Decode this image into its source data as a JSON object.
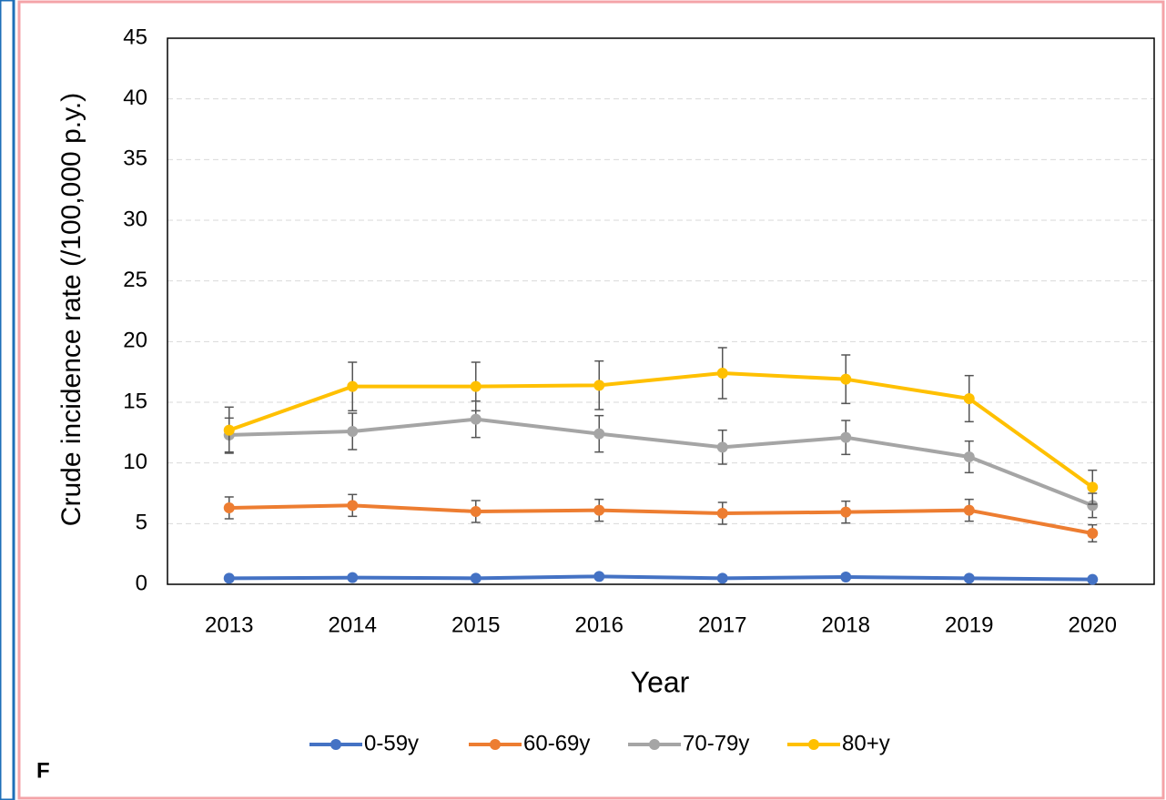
{
  "chart_data": {
    "type": "line",
    "panel_label": "F",
    "xlabel": "Year",
    "ylabel": "Crude incidence rate (/100,000 p.y.)",
    "categories": [
      "2013",
      "2014",
      "2015",
      "2016",
      "2017",
      "2018",
      "2019",
      "2020"
    ],
    "series": [
      {
        "name": "0-59y",
        "color": "#4472c4",
        "values": [
          0.5,
          0.55,
          0.5,
          0.65,
          0.5,
          0.6,
          0.5,
          0.4
        ]
      },
      {
        "name": "60-69y",
        "color": "#ed7d31",
        "values": [
          6.3,
          6.5,
          6.0,
          6.1,
          5.85,
          5.95,
          6.1,
          4.2
        ],
        "errors": [
          0.9,
          0.9,
          0.9,
          0.9,
          0.9,
          0.9,
          0.9,
          0.7
        ]
      },
      {
        "name": "70-79y",
        "color": "#a5a5a5",
        "values": [
          12.3,
          12.6,
          13.6,
          12.4,
          11.3,
          12.1,
          10.5,
          6.5
        ],
        "errors": [
          1.4,
          1.5,
          1.5,
          1.5,
          1.4,
          1.4,
          1.3,
          1.0
        ]
      },
      {
        "name": "80+y",
        "color": "#ffc000",
        "values": [
          12.7,
          16.3,
          16.3,
          16.4,
          17.4,
          16.9,
          15.3,
          8.0
        ],
        "errors": [
          1.9,
          2.0,
          2.0,
          2.0,
          2.1,
          2.0,
          1.9,
          1.4
        ]
      }
    ],
    "ylim": [
      0,
      45
    ],
    "yticks": [
      0,
      5,
      10,
      15,
      20,
      25,
      30,
      35,
      40,
      45
    ],
    "grid": true,
    "legend": "bottom"
  }
}
